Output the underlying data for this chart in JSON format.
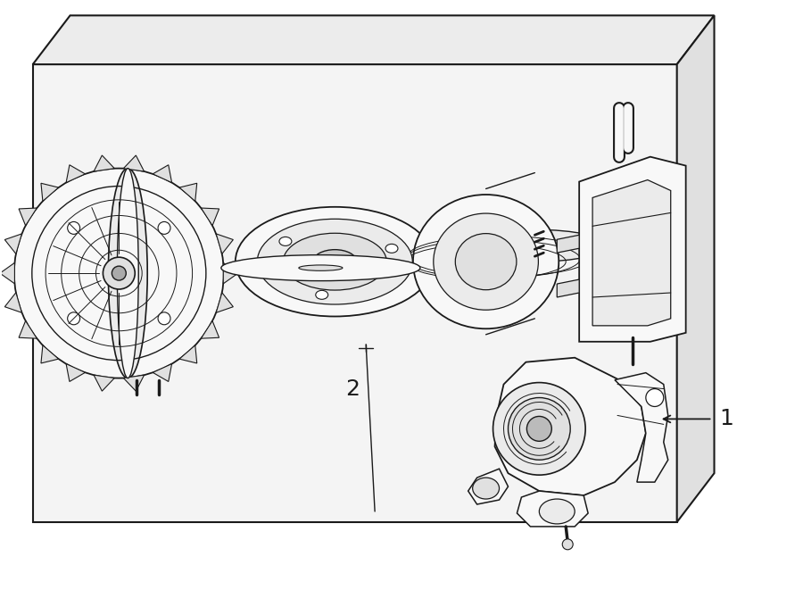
{
  "background_color": "#ffffff",
  "line_color": "#1a1a1a",
  "label_1": "1",
  "label_2": "2",
  "fig_width": 9.0,
  "fig_height": 6.61,
  "dpi": 100,
  "box_fill": "#f4f4f4",
  "box_top_fill": "#ececec",
  "comp_fill": "#f8f8f8",
  "dark_fill": "#e0e0e0",
  "mid_fill": "#ebebeb"
}
